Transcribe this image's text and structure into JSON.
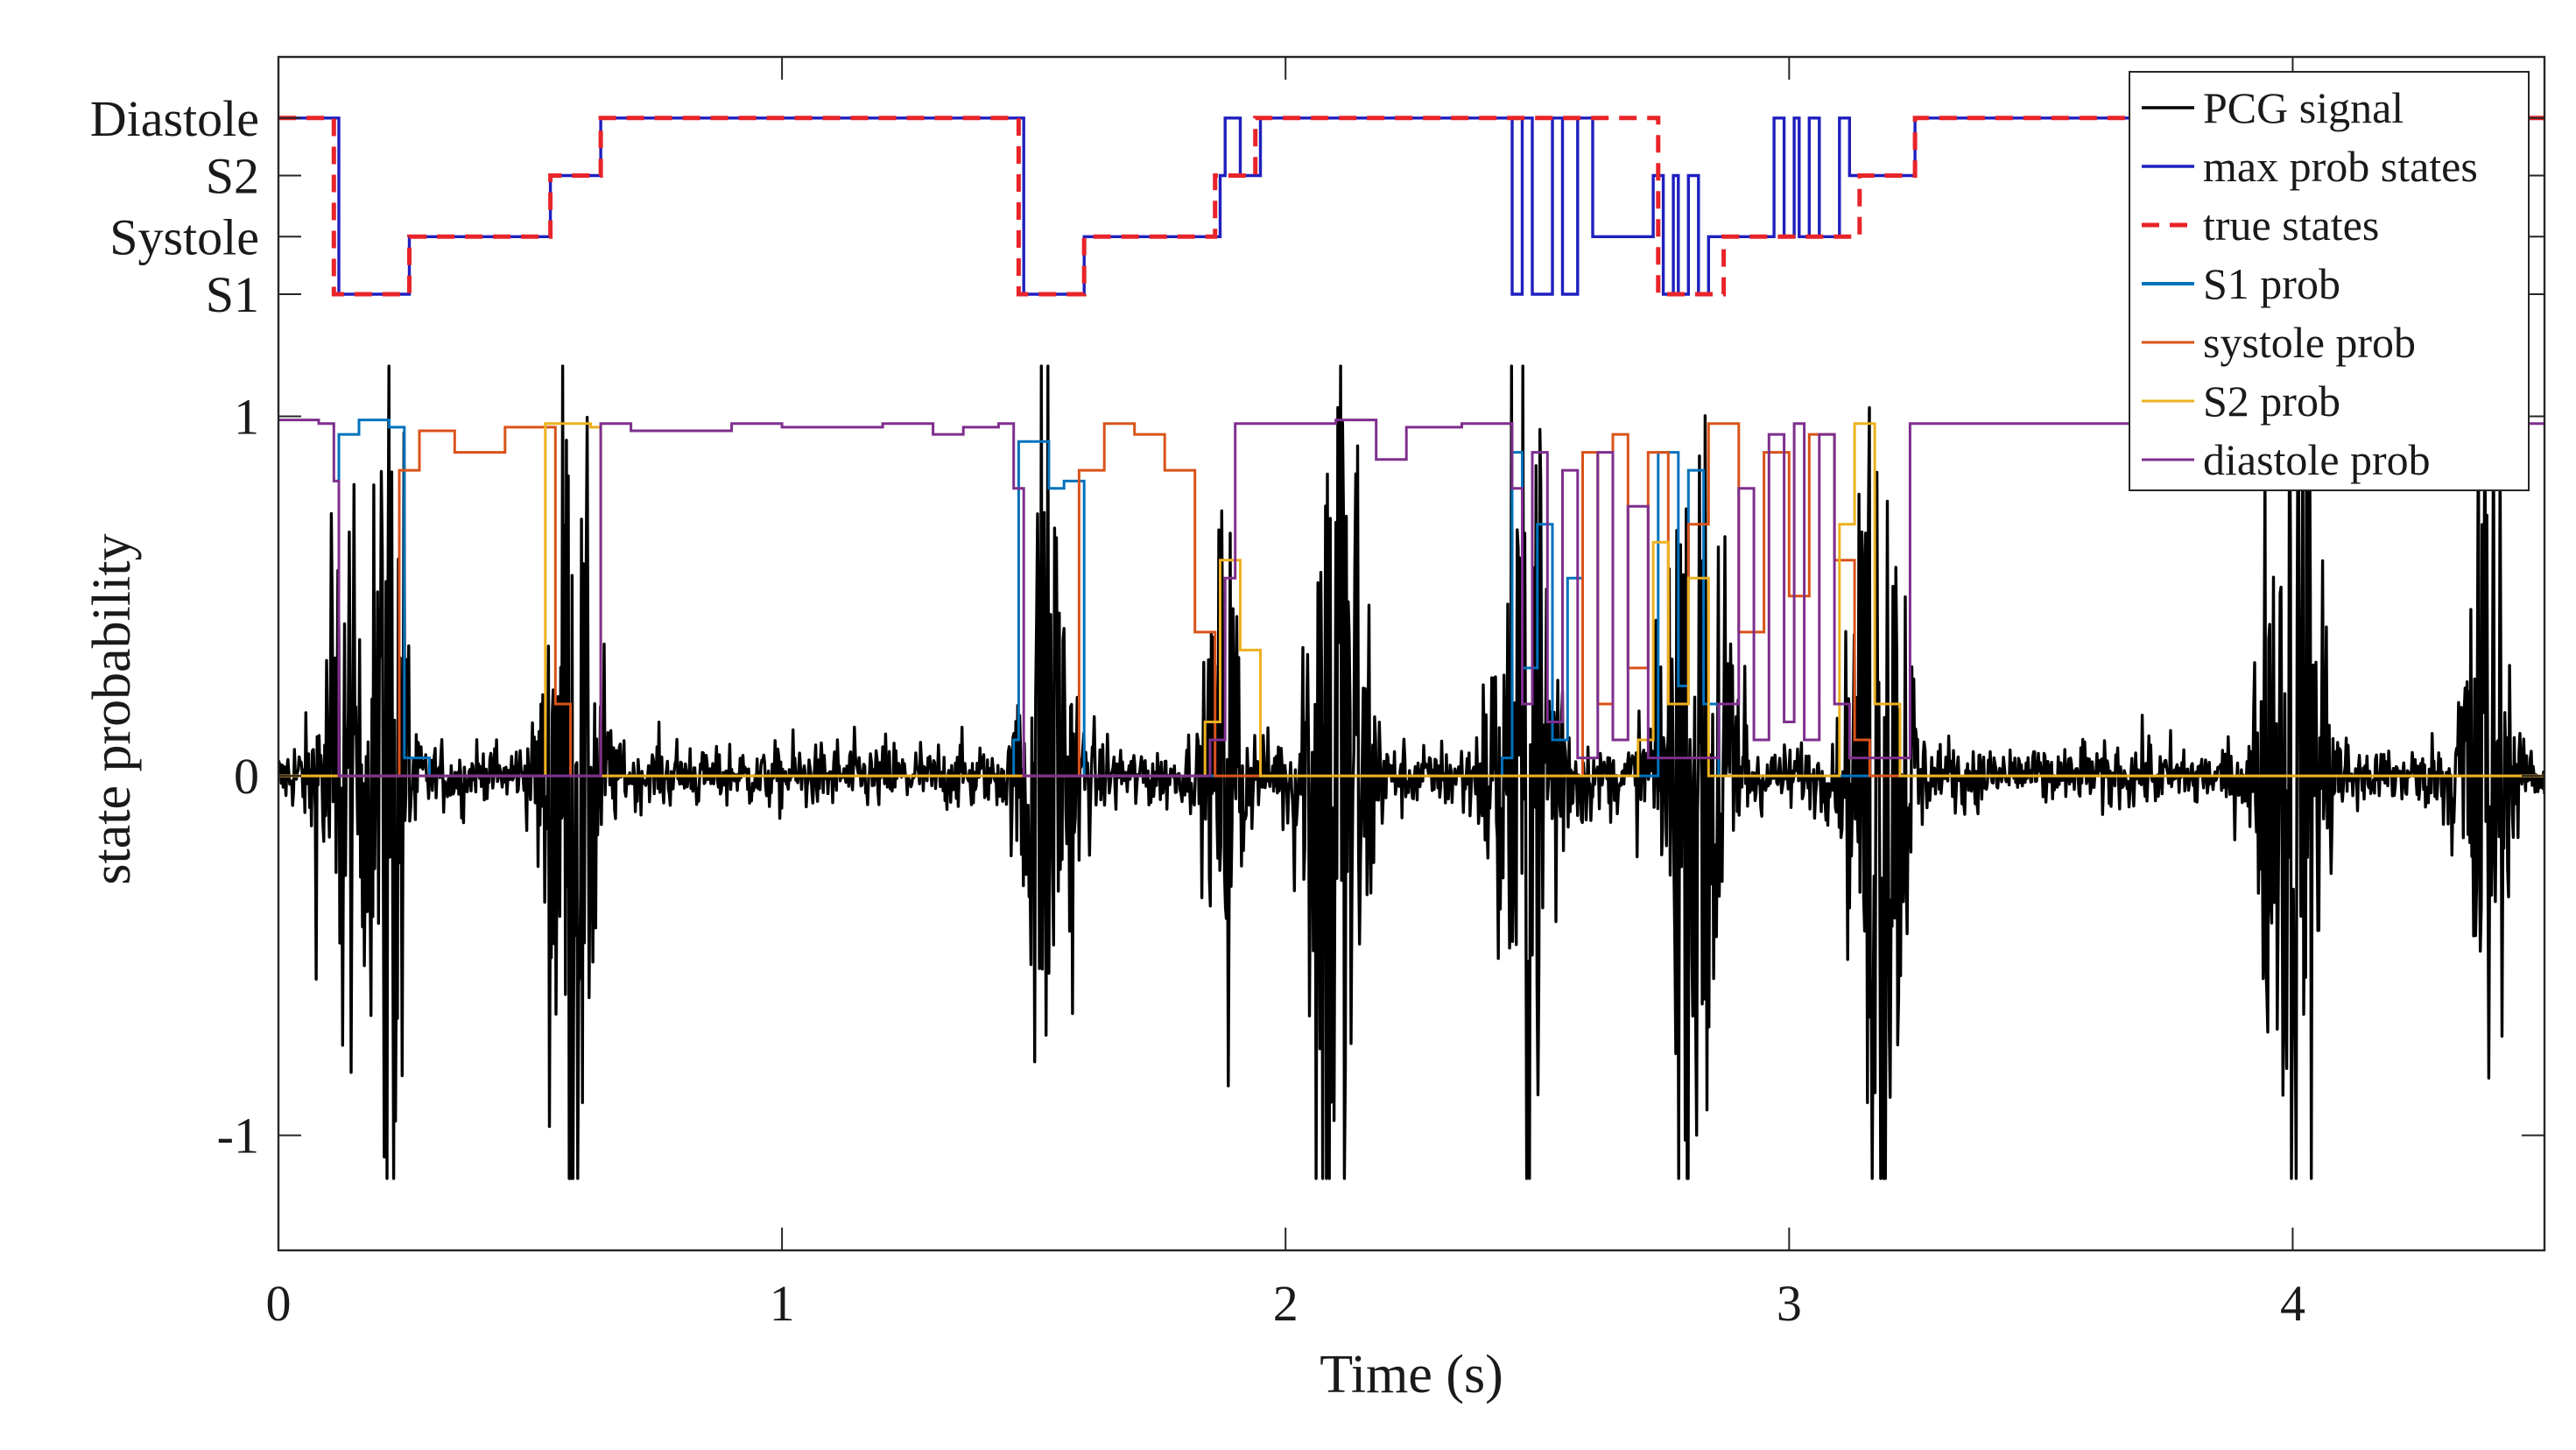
{
  "chart_data": {
    "type": "line",
    "xlabel": "Time (s)",
    "ylabel": "state probability",
    "xlim": [
      0,
      4.5
    ],
    "ylim": [
      -1.32,
      2.0
    ],
    "x_ticks": [
      {
        "value": 0,
        "label": "0"
      },
      {
        "value": 1,
        "label": "1"
      },
      {
        "value": 2,
        "label": "2"
      },
      {
        "value": 3,
        "label": "3"
      },
      {
        "value": 4,
        "label": "4"
      }
    ],
    "y_ticks": [
      {
        "value": -1,
        "label": "-1"
      },
      {
        "value": 0,
        "label": "0"
      },
      {
        "value": 1,
        "label": "1"
      }
    ],
    "state_ticks": [
      {
        "value": 1.34,
        "label": "S1"
      },
      {
        "value": 1.5,
        "label": "Systole"
      },
      {
        "value": 1.67,
        "label": "S2"
      },
      {
        "value": 1.83,
        "label": "Diastole"
      }
    ],
    "state_levels": {
      "S1": 1.34,
      "Systole": 1.5,
      "S2": 1.67,
      "Diastole": 1.83
    },
    "legend": {
      "position": "top-right",
      "entries": [
        {
          "label": "PCG signal",
          "color": "#000000",
          "style": "solid"
        },
        {
          "label": "max prob states",
          "color": "#1f1fbf",
          "style": "solid"
        },
        {
          "label": "true states",
          "color": "#e8242a",
          "style": "dashed"
        },
        {
          "label": "S1 prob",
          "color": "#0072bd",
          "style": "solid"
        },
        {
          "label": "systole prob",
          "color": "#d95319",
          "style": "solid"
        },
        {
          "label": "S2 prob",
          "color": "#edb120",
          "style": "solid"
        },
        {
          "label": "diastole prob",
          "color": "#7e2f8e",
          "style": "solid"
        }
      ]
    },
    "series": [
      {
        "name": "true states",
        "kind": "step",
        "breakpoints": [
          [
            0,
            "Diastole"
          ],
          [
            0.11,
            "S1"
          ],
          [
            0.26,
            "Systole"
          ],
          [
            0.54,
            "S2"
          ],
          [
            0.64,
            "Diastole"
          ],
          [
            1.47,
            "S1"
          ],
          [
            1.6,
            "Systole"
          ],
          [
            1.86,
            "S2"
          ],
          [
            1.94,
            "Diastole"
          ],
          [
            2.74,
            "S1"
          ],
          [
            2.87,
            "Systole"
          ],
          [
            3.14,
            "S2"
          ],
          [
            3.25,
            "Diastole"
          ],
          [
            4.5,
            "Diastole"
          ]
        ]
      },
      {
        "name": "max prob states",
        "kind": "step",
        "breakpoints": [
          [
            0,
            "Diastole"
          ],
          [
            0.12,
            "S1"
          ],
          [
            0.26,
            "Systole"
          ],
          [
            0.54,
            "S2"
          ],
          [
            0.64,
            "Diastole"
          ],
          [
            1.48,
            "S1"
          ],
          [
            1.6,
            "Systole"
          ],
          [
            1.87,
            "S2"
          ],
          [
            1.88,
            "Diastole"
          ],
          [
            1.91,
            "S2"
          ],
          [
            1.95,
            "Diastole"
          ],
          [
            2.45,
            "S1"
          ],
          [
            2.47,
            "Diastole"
          ],
          [
            2.49,
            "S1"
          ],
          [
            2.53,
            "Diastole"
          ],
          [
            2.55,
            "S1"
          ],
          [
            2.58,
            "Diastole"
          ],
          [
            2.61,
            "Systole"
          ],
          [
            2.73,
            "S2"
          ],
          [
            2.75,
            "S1"
          ],
          [
            2.77,
            "S2"
          ],
          [
            2.78,
            "S1"
          ],
          [
            2.8,
            "S2"
          ],
          [
            2.82,
            "S1"
          ],
          [
            2.84,
            "Systole"
          ],
          [
            2.97,
            "Diastole"
          ],
          [
            2.99,
            "Systole"
          ],
          [
            3.01,
            "Diastole"
          ],
          [
            3.02,
            "Systole"
          ],
          [
            3.04,
            "Diastole"
          ],
          [
            3.06,
            "Systole"
          ],
          [
            3.1,
            "Diastole"
          ],
          [
            3.12,
            "S2"
          ],
          [
            3.25,
            "Diastole"
          ],
          [
            4.5,
            "Diastole"
          ]
        ]
      },
      {
        "name": "diastole prob",
        "kind": "step",
        "breakpoints": [
          [
            0,
            0.99
          ],
          [
            0.08,
            0.98
          ],
          [
            0.11,
            0.82
          ],
          [
            0.12,
            0.0
          ],
          [
            0.64,
            0.98
          ],
          [
            0.7,
            0.96
          ],
          [
            0.9,
            0.98
          ],
          [
            1.0,
            0.97
          ],
          [
            1.2,
            0.98
          ],
          [
            1.3,
            0.95
          ],
          [
            1.36,
            0.97
          ],
          [
            1.43,
            0.98
          ],
          [
            1.46,
            0.8
          ],
          [
            1.48,
            0.0
          ],
          [
            1.85,
            0.1
          ],
          [
            1.88,
            0.55
          ],
          [
            1.9,
            0.98
          ],
          [
            2.1,
            0.99
          ],
          [
            2.18,
            0.88
          ],
          [
            2.24,
            0.97
          ],
          [
            2.35,
            0.98
          ],
          [
            2.45,
            0.8
          ],
          [
            2.47,
            0.2
          ],
          [
            2.49,
            0.9
          ],
          [
            2.52,
            0.15
          ],
          [
            2.55,
            0.85
          ],
          [
            2.58,
            0.05
          ],
          [
            2.62,
            0.9
          ],
          [
            2.65,
            0.1
          ],
          [
            2.68,
            0.75
          ],
          [
            2.72,
            0.05
          ],
          [
            2.86,
            0.2
          ],
          [
            2.9,
            0.8
          ],
          [
            2.93,
            0.1
          ],
          [
            2.96,
            0.95
          ],
          [
            2.99,
            0.15
          ],
          [
            3.01,
            0.98
          ],
          [
            3.03,
            0.1
          ],
          [
            3.06,
            0.95
          ],
          [
            3.09,
            0.2
          ],
          [
            3.12,
            0.05
          ],
          [
            3.24,
            0.98
          ],
          [
            4.5,
            0.98
          ]
        ]
      },
      {
        "name": "S1 prob",
        "kind": "step",
        "breakpoints": [
          [
            0,
            0.0
          ],
          [
            0.12,
            0.95
          ],
          [
            0.16,
            0.99
          ],
          [
            0.22,
            0.97
          ],
          [
            0.25,
            0.05
          ],
          [
            0.3,
            0.0
          ],
          [
            1.46,
            0.1
          ],
          [
            1.47,
            0.93
          ],
          [
            1.53,
            0.8
          ],
          [
            1.56,
            0.82
          ],
          [
            1.6,
            0.0
          ],
          [
            2.43,
            0.05
          ],
          [
            2.45,
            0.9
          ],
          [
            2.47,
            0.3
          ],
          [
            2.5,
            0.7
          ],
          [
            2.53,
            0.1
          ],
          [
            2.56,
            0.55
          ],
          [
            2.59,
            0.0
          ],
          [
            2.74,
            0.9
          ],
          [
            2.78,
            0.25
          ],
          [
            2.8,
            0.85
          ],
          [
            2.83,
            0.2
          ],
          [
            2.86,
            0.0
          ],
          [
            4.5,
            0.0
          ]
        ]
      },
      {
        "name": "systole prob",
        "kind": "step",
        "breakpoints": [
          [
            0,
            0.0
          ],
          [
            0.24,
            0.85
          ],
          [
            0.28,
            0.96
          ],
          [
            0.35,
            0.9
          ],
          [
            0.45,
            0.97
          ],
          [
            0.55,
            0.2
          ],
          [
            0.58,
            0.0
          ],
          [
            1.59,
            0.85
          ],
          [
            1.64,
            0.98
          ],
          [
            1.7,
            0.95
          ],
          [
            1.76,
            0.85
          ],
          [
            1.82,
            0.4
          ],
          [
            1.86,
            0.0
          ],
          [
            2.59,
            0.9
          ],
          [
            2.62,
            0.2
          ],
          [
            2.65,
            0.95
          ],
          [
            2.68,
            0.3
          ],
          [
            2.72,
            0.9
          ],
          [
            2.76,
            0.2
          ],
          [
            2.8,
            0.7
          ],
          [
            2.84,
            0.98
          ],
          [
            2.9,
            0.4
          ],
          [
            2.95,
            0.9
          ],
          [
            3.0,
            0.5
          ],
          [
            3.04,
            0.95
          ],
          [
            3.09,
            0.6
          ],
          [
            3.13,
            0.1
          ],
          [
            3.16,
            0.0
          ],
          [
            4.5,
            0.0
          ]
        ]
      },
      {
        "name": "S2 prob",
        "kind": "step",
        "breakpoints": [
          [
            0,
            0.0
          ],
          [
            0.53,
            0.98
          ],
          [
            0.62,
            0.97
          ],
          [
            0.64,
            0.0
          ],
          [
            1.84,
            0.15
          ],
          [
            1.87,
            0.6
          ],
          [
            1.91,
            0.35
          ],
          [
            1.95,
            0.0
          ],
          [
            2.7,
            0.1
          ],
          [
            2.73,
            0.65
          ],
          [
            2.76,
            0.2
          ],
          [
            2.8,
            0.55
          ],
          [
            2.84,
            0.0
          ],
          [
            3.1,
            0.7
          ],
          [
            3.13,
            0.98
          ],
          [
            3.17,
            0.2
          ],
          [
            3.22,
            0.0
          ],
          [
            4.5,
            0.0
          ]
        ]
      },
      {
        "name": "PCG signal",
        "kind": "waveform",
        "baseline_noise": 0.06,
        "bursts": [
          {
            "t": 0.12,
            "amp": 0.55,
            "width": 0.06
          },
          {
            "t": 0.22,
            "amp": 1.0,
            "width": 0.05
          },
          {
            "t": 0.58,
            "amp": 0.9,
            "width": 0.07
          },
          {
            "t": 1.53,
            "amp": 0.8,
            "width": 0.07
          },
          {
            "t": 1.88,
            "amp": 0.5,
            "width": 0.05
          },
          {
            "t": 2.1,
            "amp": 1.2,
            "width": 0.08
          },
          {
            "t": 2.48,
            "amp": 0.85,
            "width": 0.09
          },
          {
            "t": 2.82,
            "amp": 0.85,
            "width": 0.1
          },
          {
            "t": 3.18,
            "amp": 1.1,
            "width": 0.07
          },
          {
            "t": 4.0,
            "amp": 1.15,
            "width": 0.08
          },
          {
            "t": 4.38,
            "amp": 0.8,
            "width": 0.06
          }
        ],
        "min": -1.12,
        "max": 1.14
      }
    ]
  }
}
